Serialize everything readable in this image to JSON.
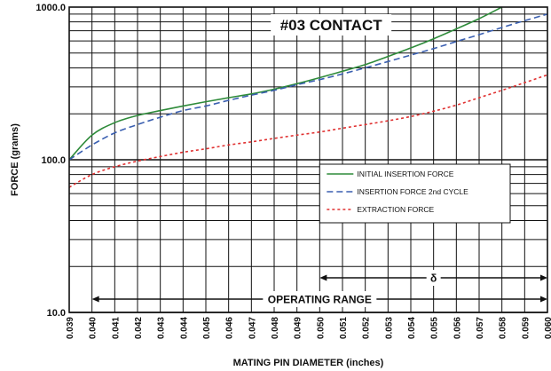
{
  "chart_data": {
    "type": "line",
    "title": "#03 CONTACT",
    "xlabel": "MATING PIN  DIAMETER (inches)",
    "ylabel": "FORCE (grams)",
    "x_ticks": [
      "0.039",
      "0.040",
      "0.041",
      "0.042",
      "0.043",
      "0.044",
      "0.045",
      "0.046",
      "0.047",
      "0.048",
      "0.049",
      "0.050",
      "0.051",
      "0.052",
      "0.053",
      "0.054",
      "0.055",
      "0.056",
      "0.057",
      "0.058",
      "0.059",
      "0.060"
    ],
    "xlim": [
      0.039,
      0.06
    ],
    "y_scale": "log",
    "ylim": [
      10,
      1000
    ],
    "y_tick_labels": [
      {
        "value": 10,
        "label": "10.0"
      },
      {
        "value": 100,
        "label": "100.0"
      },
      {
        "value": 1000,
        "label": "1000.0"
      }
    ],
    "grid": true,
    "legend_position": "right",
    "series": [
      {
        "name": "INITIAL INSERTION FORCE",
        "color": "#2e8b3a",
        "dash": "solid",
        "x": [
          0.039,
          0.04,
          0.041,
          0.042,
          0.043,
          0.044,
          0.045,
          0.046,
          0.047,
          0.048,
          0.049,
          0.05,
          0.051,
          0.052,
          0.053,
          0.054,
          0.055,
          0.056,
          0.057,
          0.058
        ],
        "y": [
          100,
          145,
          175,
          195,
          210,
          225,
          240,
          255,
          270,
          290,
          315,
          345,
          380,
          420,
          475,
          540,
          620,
          720,
          840,
          1000
        ]
      },
      {
        "name": "INSERTION FORCE 2nd CYCLE",
        "color": "#3a5fb0",
        "dash": "dashed",
        "x": [
          0.039,
          0.04,
          0.041,
          0.042,
          0.043,
          0.044,
          0.045,
          0.046,
          0.047,
          0.048,
          0.049,
          0.05,
          0.051,
          0.052,
          0.053,
          0.054,
          0.055,
          0.056,
          0.057,
          0.058,
          0.059,
          0.06
        ],
        "y": [
          100,
          125,
          150,
          170,
          190,
          210,
          225,
          245,
          265,
          285,
          310,
          335,
          365,
          400,
          440,
          485,
          535,
          595,
          660,
          735,
          815,
          900
        ]
      },
      {
        "name": "EXTRACTION FORCE",
        "color": "#e03030",
        "dash": "dotted",
        "x": [
          0.039,
          0.04,
          0.041,
          0.042,
          0.043,
          0.044,
          0.045,
          0.046,
          0.047,
          0.048,
          0.049,
          0.05,
          0.051,
          0.052,
          0.053,
          0.054,
          0.055,
          0.056,
          0.057,
          0.058,
          0.059,
          0.06
        ],
        "y": [
          66,
          80,
          90,
          98,
          105,
          112,
          118,
          125,
          131,
          138,
          145,
          152,
          161,
          170,
          180,
          192,
          208,
          228,
          255,
          285,
          320,
          360
        ]
      }
    ],
    "annotations": [
      {
        "text": "OPERATING RANGE",
        "from": 0.04,
        "to": 0.06
      },
      {
        "text": "δ",
        "from": 0.05,
        "to": 0.06
      }
    ]
  }
}
